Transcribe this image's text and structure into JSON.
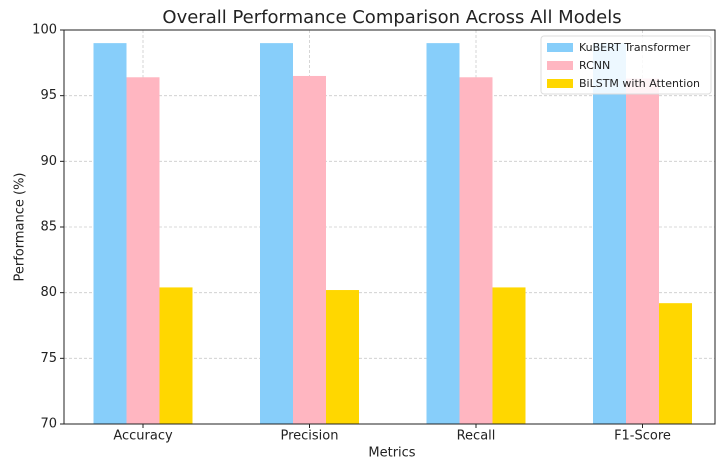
{
  "chart_data": {
    "type": "bar",
    "title": "Overall Performance Comparison Across All Models",
    "x_label": "Metrics",
    "y_label": "Performance (%)",
    "categories": [
      "Accuracy",
      "Precision",
      "Recall",
      "F1-Score"
    ],
    "series": [
      {
        "name": "KuBERT Transformer",
        "color": "#87cefa",
        "values": [
          99.0,
          99.0,
          99.0,
          99.0
        ]
      },
      {
        "name": "RCNN",
        "color": "#ffb6c1",
        "values": [
          96.4,
          96.5,
          96.4,
          96.3
        ]
      },
      {
        "name": "BiLSTM with Attention",
        "color": "#ffd700",
        "values": [
          80.4,
          80.2,
          80.4,
          79.2
        ]
      }
    ],
    "ylim": [
      70,
      100
    ],
    "yticks": [
      70,
      75,
      80,
      85,
      90,
      95,
      100
    ],
    "grid": true,
    "legend": "upper right"
  }
}
